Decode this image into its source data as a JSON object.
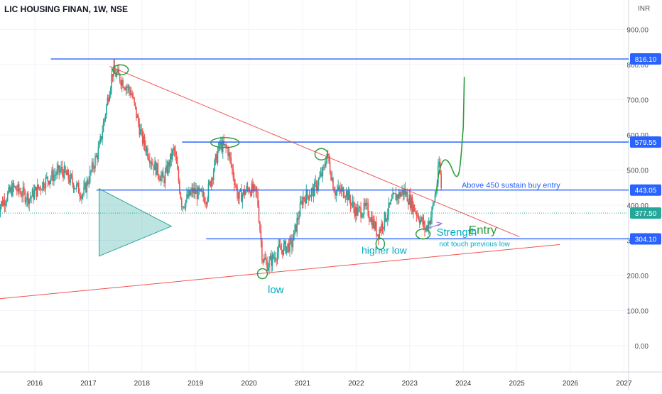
{
  "header": {
    "symbol": "LIC HOUSING FINAN, 1W, NSE",
    "currency": "INR"
  },
  "chart_data": {
    "type": "candlestick",
    "x_ticks": [
      "2016",
      "2017",
      "2018",
      "2019",
      "2020",
      "2021",
      "2022",
      "2023",
      "2024",
      "2025",
      "2026",
      "2027"
    ],
    "y_ticks": [
      "0.00",
      "100.00",
      "200.00",
      "300.00",
      "400.00",
      "500.00",
      "600.00",
      "700.00",
      "800.00",
      "900.00"
    ],
    "ylim": [
      -75,
      980
    ],
    "grid": true,
    "price_labels": [
      {
        "text": "816.10",
        "value": 816.1,
        "color": "#2962ff"
      },
      {
        "text": "579.55",
        "value": 579.55,
        "color": "#2962ff"
      },
      {
        "text": "443.05",
        "value": 443.05,
        "color": "#2962ff"
      },
      {
        "text": "377.50",
        "value": 377.5,
        "color": "#26a69a"
      },
      {
        "text": "304.10",
        "value": 304.1,
        "color": "#2962ff"
      }
    ],
    "annotations": {
      "buy_entry": "Above 450 sustain buy entry",
      "strength": "Strength",
      "entry": "Entry",
      "not_touch": "not touch previous low",
      "higher_low": "higher low",
      "low": "low"
    },
    "price_path": [
      [
        2015.3,
        390
      ],
      [
        2015.6,
        450
      ],
      [
        2015.9,
        420
      ],
      [
        2016.2,
        470
      ],
      [
        2016.5,
        500
      ],
      [
        2016.9,
        430
      ],
      [
        2017.2,
        560
      ],
      [
        2017.45,
        780
      ],
      [
        2017.55,
        770
      ],
      [
        2017.8,
        720
      ],
      [
        2018.0,
        590
      ],
      [
        2018.2,
        520
      ],
      [
        2018.4,
        470
      ],
      [
        2018.6,
        560
      ],
      [
        2018.75,
        400
      ],
      [
        2018.95,
        440
      ],
      [
        2019.2,
        420
      ],
      [
        2019.45,
        570
      ],
      [
        2019.6,
        560
      ],
      [
        2019.8,
        420
      ],
      [
        2020.0,
        450
      ],
      [
        2020.15,
        430
      ],
      [
        2020.25,
        250
      ],
      [
        2020.35,
        230
      ],
      [
        2020.55,
        270
      ],
      [
        2020.8,
        290
      ],
      [
        2021.0,
        420
      ],
      [
        2021.2,
        440
      ],
      [
        2021.4,
        500
      ],
      [
        2021.45,
        550
      ],
      [
        2021.6,
        440
      ],
      [
        2021.8,
        440
      ],
      [
        2022.0,
        380
      ],
      [
        2022.2,
        390
      ],
      [
        2022.4,
        320
      ],
      [
        2022.5,
        350
      ],
      [
        2022.7,
        420
      ],
      [
        2022.9,
        440
      ],
      [
        2023.05,
        400
      ],
      [
        2023.2,
        360
      ],
      [
        2023.3,
        330
      ],
      [
        2023.4,
        370
      ],
      [
        2023.5,
        450
      ],
      [
        2023.55,
        520
      ],
      [
        2023.6,
        430
      ]
    ],
    "trendlines": [
      {
        "from": [
          2017.4,
          795
        ],
        "to": [
          2025.05,
          310
        ],
        "color": "#ef5350"
      },
      {
        "from": [
          2015.3,
          133
        ],
        "to": [
          2025.8,
          288
        ],
        "color": "#ef5350"
      }
    ],
    "hlines": [
      {
        "value": 816.1,
        "x_from": 2016.3,
        "color": "#2962ff"
      },
      {
        "value": 579.55,
        "x_from": 2018.75,
        "color": "#2962ff"
      },
      {
        "value": 443.05,
        "x_from": 2017.15,
        "color": "#2962ff"
      },
      {
        "value": 304.1,
        "x_from": 2019.2,
        "color": "#2962ff"
      }
    ]
  }
}
